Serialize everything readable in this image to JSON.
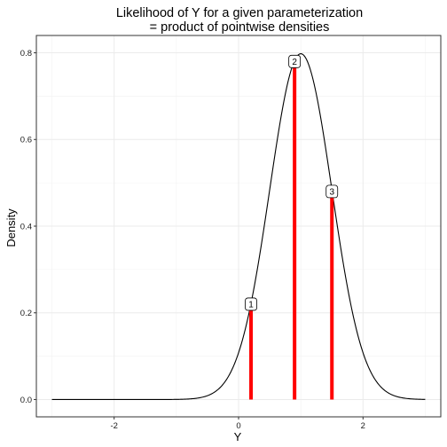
{
  "chart_data": {
    "type": "line",
    "title_lines": [
      "Likelihood of Y for a given parameterization",
      "= product of pointwise densities"
    ],
    "xlabel": "Y",
    "ylabel": "Density",
    "xlim": [
      -3.25,
      3.25
    ],
    "ylim": [
      -0.04,
      0.84
    ],
    "x_ticks": [
      -2,
      0,
      2
    ],
    "x_tick_labels": [
      "-2",
      "0",
      "2"
    ],
    "y_ticks": [
      0.0,
      0.2,
      0.4,
      0.6,
      0.8
    ],
    "y_tick_labels": [
      "0.0",
      "0.2",
      "0.4",
      "0.6",
      "0.8"
    ],
    "grid": true,
    "legend": "none",
    "curve": {
      "distribution": "normal",
      "mean": 1.0,
      "sd": 0.5,
      "x_range": [
        -3,
        3
      ],
      "color": "#000000"
    },
    "observations": [
      {
        "label": "1",
        "x": 0.2,
        "density": 0.22
      },
      {
        "label": "2",
        "x": 0.9,
        "density": 0.78
      },
      {
        "label": "3",
        "x": 1.5,
        "density": 0.48
      }
    ],
    "observation_color": "#ff0000"
  }
}
